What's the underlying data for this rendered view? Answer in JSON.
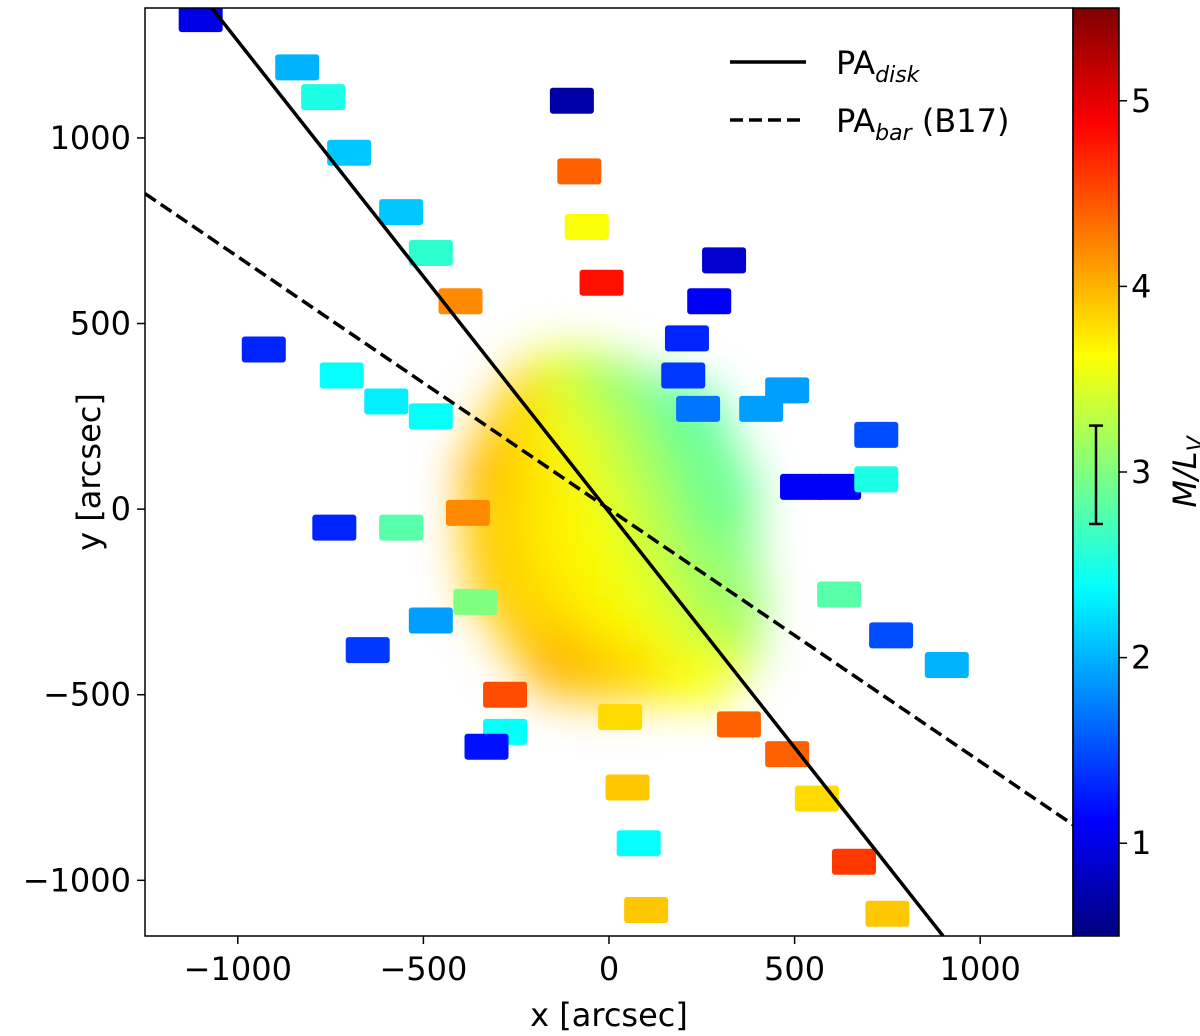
{
  "chart_data": {
    "type": "scatter",
    "xlabel": "x [arcsec]",
    "ylabel": "y [arcsec]",
    "xlim": [
      -1250,
      1250
    ],
    "ylim": [
      -1150,
      1350
    ],
    "xticks": [
      -1000,
      -500,
      0,
      500,
      1000
    ],
    "xtick_labels": [
      "−1000",
      "−500",
      "0",
      "500",
      "1000"
    ],
    "yticks": [
      -1000,
      -500,
      0,
      500,
      1000
    ],
    "ytick_labels": [
      "−1000",
      "−500",
      "0",
      "500",
      "1000"
    ],
    "colorbar": {
      "label_main": "M/L",
      "label_sub": "V",
      "range": [
        0.5,
        5.5
      ],
      "ticks": [
        1,
        2,
        3,
        4,
        5
      ],
      "tick_labels": [
        "1",
        "2",
        "3",
        "4",
        "5"
      ],
      "errorbar_center": 3.0,
      "errorbar_range": [
        2.72,
        3.25
      ],
      "colormap": "jet"
    },
    "lines": [
      {
        "name": "PA",
        "subscript": "disk",
        "suffix": "",
        "style": "solid",
        "points": [
          [
            -1070,
            1350
          ],
          [
            900,
            -1150
          ]
        ]
      },
      {
        "name": "PA",
        "subscript": "bar",
        "suffix": " (B17)",
        "style": "dashed",
        "points": [
          [
            -1250,
            850
          ],
          [
            1250,
            -850
          ]
        ]
      }
    ],
    "legend_position": "top-right",
    "central_blob": [
      [
        -180,
        300,
        3.9
      ],
      [
        -100,
        350,
        3.5
      ],
      [
        0,
        320,
        3.2
      ],
      [
        100,
        280,
        3.0
      ],
      [
        200,
        250,
        2.8
      ],
      [
        -250,
        200,
        3.9
      ],
      [
        -150,
        180,
        3.7
      ],
      [
        -50,
        200,
        3.5
      ],
      [
        50,
        180,
        3.3
      ],
      [
        150,
        150,
        3.1
      ],
      [
        250,
        150,
        2.9
      ],
      [
        -300,
        80,
        4.0
      ],
      [
        -200,
        60,
        3.8
      ],
      [
        -100,
        80,
        3.7
      ],
      [
        0,
        60,
        3.5
      ],
      [
        100,
        50,
        3.3
      ],
      [
        200,
        40,
        3.1
      ],
      [
        300,
        30,
        2.9
      ],
      [
        -300,
        -60,
        3.9
      ],
      [
        -200,
        -50,
        3.8
      ],
      [
        -100,
        -40,
        3.7
      ],
      [
        0,
        -50,
        3.6
      ],
      [
        100,
        -60,
        3.4
      ],
      [
        200,
        -80,
        3.2
      ],
      [
        300,
        -80,
        3.0
      ],
      [
        -280,
        -200,
        3.9
      ],
      [
        -180,
        -180,
        3.8
      ],
      [
        -80,
        -160,
        3.7
      ],
      [
        20,
        -180,
        3.6
      ],
      [
        120,
        -200,
        3.5
      ],
      [
        220,
        -220,
        3.3
      ],
      [
        320,
        -250,
        3.1
      ],
      [
        -200,
        -320,
        3.9
      ],
      [
        -100,
        -300,
        3.8
      ],
      [
        0,
        -320,
        3.7
      ],
      [
        100,
        -330,
        3.6
      ],
      [
        200,
        -340,
        3.5
      ],
      [
        300,
        -360,
        3.2
      ],
      [
        -120,
        -420,
        4.0
      ],
      [
        0,
        -440,
        3.9
      ],
      [
        120,
        -440,
        3.8
      ],
      [
        240,
        -440,
        3.6
      ]
    ],
    "patches": [
      [
        -1100,
        1320,
        1.0
      ],
      [
        -840,
        1190,
        2.0
      ],
      [
        -770,
        1110,
        2.5
      ],
      [
        -700,
        960,
        2.1
      ],
      [
        -560,
        800,
        2.1
      ],
      [
        -480,
        690,
        2.6
      ],
      [
        -400,
        560,
        4.2
      ],
      [
        -930,
        430,
        1.3
      ],
      [
        -720,
        360,
        2.4
      ],
      [
        -600,
        290,
        2.3
      ],
      [
        -480,
        250,
        2.4
      ],
      [
        -740,
        -50,
        1.3
      ],
      [
        -560,
        -50,
        2.8
      ],
      [
        -380,
        -10,
        4.2
      ],
      [
        -650,
        -380,
        1.4
      ],
      [
        -480,
        -300,
        1.9
      ],
      [
        -360,
        -250,
        3.0
      ],
      [
        -280,
        -500,
        4.5
      ],
      [
        -280,
        -600,
        2.4
      ],
      [
        -330,
        -640,
        1.2
      ],
      [
        -100,
        1100,
        0.7
      ],
      [
        -80,
        910,
        4.4
      ],
      [
        -60,
        760,
        3.6
      ],
      [
        -20,
        610,
        4.8
      ],
      [
        30,
        -560,
        3.8
      ],
      [
        50,
        -750,
        3.9
      ],
      [
        80,
        -900,
        2.4
      ],
      [
        100,
        -1080,
        3.9
      ],
      [
        310,
        670,
        0.9
      ],
      [
        270,
        560,
        1.1
      ],
      [
        210,
        460,
        1.3
      ],
      [
        200,
        360,
        1.4
      ],
      [
        240,
        270,
        1.7
      ],
      [
        410,
        270,
        1.9
      ],
      [
        480,
        320,
        1.9
      ],
      [
        520,
        60,
        1.1
      ],
      [
        620,
        60,
        1.1
      ],
      [
        720,
        80,
        2.5
      ],
      [
        720,
        200,
        1.5
      ],
      [
        620,
        -230,
        2.8
      ],
      [
        760,
        -340,
        1.5
      ],
      [
        910,
        -420,
        2.0
      ],
      [
        350,
        -580,
        4.4
      ],
      [
        480,
        -660,
        4.4
      ],
      [
        560,
        -780,
        3.8
      ],
      [
        660,
        -950,
        4.6
      ],
      [
        750,
        -1090,
        3.9
      ]
    ]
  }
}
